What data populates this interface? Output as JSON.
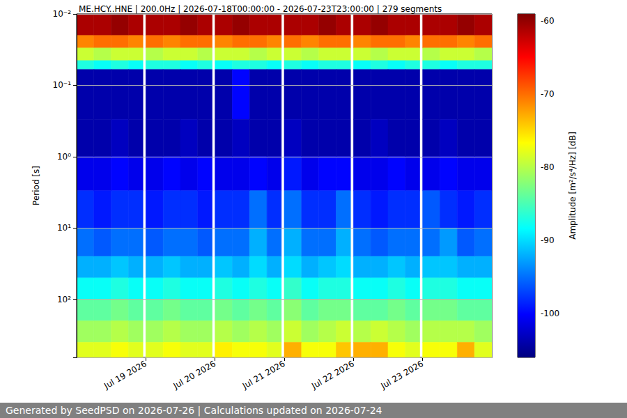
{
  "chart_data": {
    "type": "spectrogram",
    "title": "ME.HCY..HNE | 200.0Hz | 2026-07-18T00:00:00 - 2026-07-23T23:00:00 | 279 segments",
    "footer": "Generated by SeedPSD on 2026-07-26 | Calculations updated on 2026-07-24",
    "y_label": "Period [s]",
    "log": "y",
    "grid": true,
    "xlim": [
      "2026-07-18T00:00",
      "2026-07-24T00:00"
    ],
    "xticks": [
      {
        "value": "2026-07-19T00:00",
        "label": "Jul 19 2026"
      },
      {
        "value": "2026-07-20T00:00",
        "label": "Jul 20 2026"
      },
      {
        "value": "2026-07-21T00:00",
        "label": "Jul 21 2026"
      },
      {
        "value": "2026-07-22T00:00",
        "label": "Jul 22 2026"
      },
      {
        "value": "2026-07-23T00:00",
        "label": "Jul 23 2026"
      }
    ],
    "ylim": [
      0.01,
      650
    ],
    "yticks": [
      {
        "value": 0.01,
        "label": "10⁻²"
      },
      {
        "value": 0.1,
        "label": "10⁻¹"
      },
      {
        "value": 1,
        "label": "10⁰"
      },
      {
        "value": 10,
        "label": "10¹"
      },
      {
        "value": 100,
        "label": "10²"
      }
    ],
    "colorbar": {
      "label": "Amplitude [m²/s⁴/Hz] [dB]",
      "range": [
        -106,
        -59
      ],
      "ticks": [
        -100,
        -90,
        -80,
        -70,
        -60
      ]
    },
    "time_bins": [
      [
        "2026-07-18T00:00",
        "2026-07-18T06:00"
      ],
      [
        "2026-07-18T06:00",
        "2026-07-18T12:00"
      ],
      [
        "2026-07-18T12:00",
        "2026-07-18T18:00"
      ],
      [
        "2026-07-18T18:00",
        "2026-07-18T23:00"
      ],
      [
        "2026-07-19T00:00",
        "2026-07-19T06:00"
      ],
      [
        "2026-07-19T06:00",
        "2026-07-19T12:00"
      ],
      [
        "2026-07-19T12:00",
        "2026-07-19T18:00"
      ],
      [
        "2026-07-19T18:00",
        "2026-07-19T23:00"
      ],
      [
        "2026-07-20T00:00",
        "2026-07-20T06:00"
      ],
      [
        "2026-07-20T06:00",
        "2026-07-20T12:00"
      ],
      [
        "2026-07-20T12:00",
        "2026-07-20T18:00"
      ],
      [
        "2026-07-20T18:00",
        "2026-07-20T23:00"
      ],
      [
        "2026-07-21T00:00",
        "2026-07-21T06:00"
      ],
      [
        "2026-07-21T06:00",
        "2026-07-21T12:00"
      ],
      [
        "2026-07-21T12:00",
        "2026-07-21T18:00"
      ],
      [
        "2026-07-21T18:00",
        "2026-07-21T23:00"
      ],
      [
        "2026-07-22T00:00",
        "2026-07-22T06:00"
      ],
      [
        "2026-07-22T06:00",
        "2026-07-22T12:00"
      ],
      [
        "2026-07-22T12:00",
        "2026-07-22T18:00"
      ],
      [
        "2026-07-22T18:00",
        "2026-07-22T23:00"
      ],
      [
        "2026-07-23T00:00",
        "2026-07-23T06:00"
      ],
      [
        "2026-07-23T06:00",
        "2026-07-23T12:00"
      ],
      [
        "2026-07-23T12:00",
        "2026-07-23T18:00"
      ],
      [
        "2026-07-23T18:00",
        "2026-07-24T00:00"
      ]
    ],
    "period_edges": [
      0.01,
      0.02,
      0.03,
      0.045,
      0.06,
      0.3,
      1,
      3,
      10,
      25,
      50,
      100,
      200,
      400,
      650
    ],
    "values": [
      [
        -61,
        -61,
        -60,
        -61,
        -61,
        -61,
        -60,
        -61,
        -61,
        -60,
        -61,
        -61,
        -61,
        -61,
        -60,
        -61,
        -61,
        -60,
        -61,
        -61,
        -61,
        -61,
        -60,
        -61
      ],
      [
        -71,
        -70,
        -70,
        -71,
        -70,
        -71,
        -70,
        -70,
        -71,
        -70,
        -70,
        -71,
        -70,
        -71,
        -70,
        -70,
        -71,
        -70,
        -70,
        -71,
        -70,
        -70,
        -71,
        -70
      ],
      [
        -79,
        -80,
        -79,
        -79,
        -80,
        -79,
        -79,
        -80,
        -79,
        -79,
        -80,
        -79,
        -79,
        -80,
        -79,
        -79,
        -79,
        -80,
        -79,
        -79,
        -80,
        -79,
        -79,
        -80
      ],
      [
        -87,
        -88,
        -87,
        -88,
        -87,
        -87,
        -88,
        -87,
        -88,
        -87,
        -87,
        -88,
        -87,
        -88,
        -87,
        -87,
        -88,
        -87,
        -88,
        -87,
        -87,
        -88,
        -87,
        -87
      ],
      [
        -104,
        -104,
        -104,
        -104,
        -104,
        -104,
        -104,
        -104,
        -104,
        -100,
        -104,
        -104,
        -104,
        -104,
        -104,
        -104,
        -104,
        -104,
        -104,
        -104,
        -104,
        -104,
        -104,
        -104
      ],
      [
        -104,
        -104,
        -103,
        -104,
        -104,
        -104,
        -103,
        -104,
        -104,
        -103,
        -104,
        -104,
        -103,
        -104,
        -104,
        -104,
        -104,
        -103,
        -104,
        -104,
        -104,
        -103,
        -104,
        -104
      ],
      [
        -101,
        -101,
        -100,
        -101,
        -101,
        -100,
        -101,
        -100,
        -101,
        -101,
        -100,
        -101,
        -99,
        -101,
        -100,
        -100,
        -101,
        -101,
        -100,
        -101,
        -101,
        -100,
        -101,
        -101
      ],
      [
        -98,
        -99,
        -98,
        -98,
        -99,
        -98,
        -98,
        -99,
        -98,
        -98,
        -95,
        -98,
        -95,
        -98,
        -98,
        -95,
        -98,
        -99,
        -98,
        -98,
        -96,
        -98,
        -99,
        -98
      ],
      [
        -95,
        -96,
        -95,
        -95,
        -96,
        -95,
        -95,
        -96,
        -95,
        -95,
        -92,
        -95,
        -92,
        -95,
        -95,
        -92,
        -95,
        -96,
        -95,
        -95,
        -95,
        -93,
        -96,
        -95
      ],
      [
        -92,
        -92,
        -91,
        -92,
        -92,
        -91,
        -92,
        -92,
        -91,
        -92,
        -90,
        -92,
        -90,
        -92,
        -91,
        -90,
        -92,
        -92,
        -91,
        -92,
        -91,
        -91,
        -92,
        -92
      ],
      [
        -88,
        -88,
        -87,
        -88,
        -88,
        -87,
        -88,
        -88,
        -87,
        -88,
        -87,
        -88,
        -86,
        -88,
        -87,
        -87,
        -88,
        -88,
        -87,
        -88,
        -87,
        -87,
        -88,
        -88
      ],
      [
        -84,
        -84,
        -83,
        -84,
        -84,
        -83,
        -84,
        -84,
        -83,
        -84,
        -83,
        -84,
        -82,
        -84,
        -83,
        -83,
        -84,
        -84,
        -83,
        -84,
        -83,
        -83,
        -84,
        -84
      ],
      [
        -81,
        -81,
        -80,
        -81,
        -81,
        -80,
        -81,
        -81,
        -80,
        -81,
        -80,
        -81,
        -79,
        -81,
        -80,
        -79,
        -80,
        -79,
        -80,
        -81,
        -80,
        -80,
        -80,
        -81
      ],
      [
        -78,
        -78,
        -77,
        -78,
        -78,
        -77,
        -78,
        -78,
        -76,
        -77,
        -77,
        -78,
        -73,
        -77,
        -77,
        -74,
        -73,
        -73,
        -77,
        -78,
        -77,
        -77,
        -73,
        -78
      ]
    ]
  }
}
